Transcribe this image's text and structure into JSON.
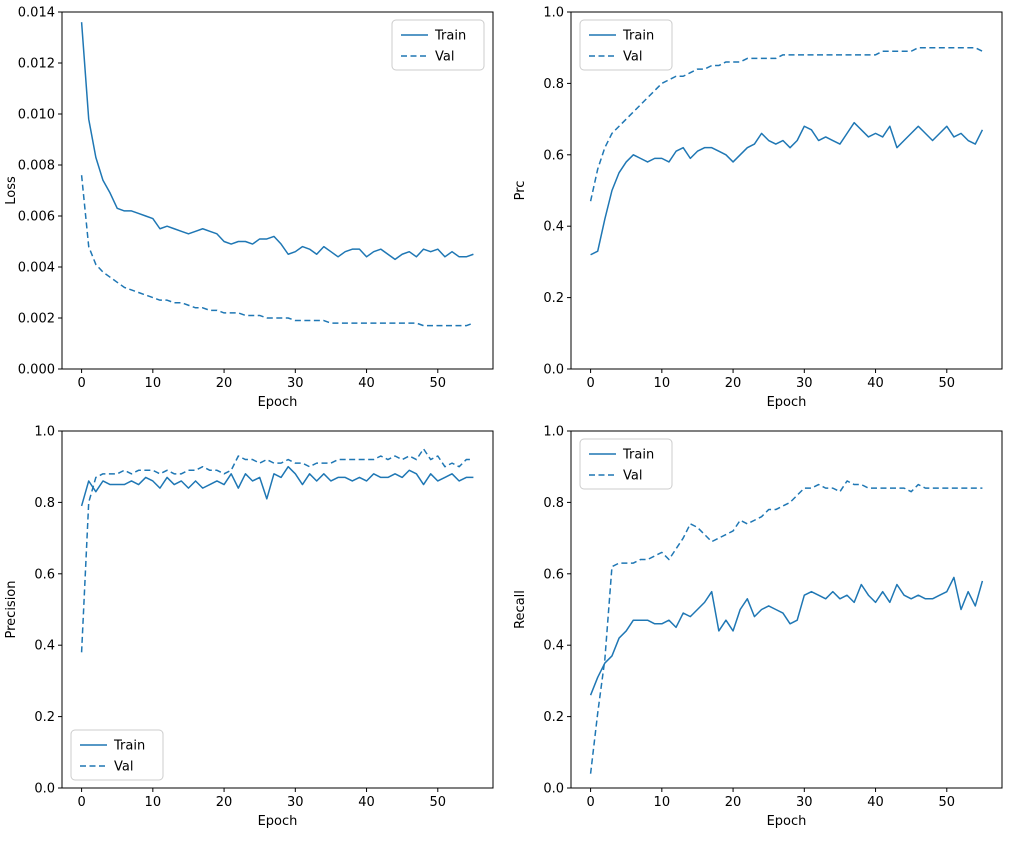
{
  "figure": {
    "background": "#ffffff",
    "accent_color": "#1f77b4",
    "text_color": "#000000",
    "frame_color": "#000000",
    "legend_border_color": "#cccccc"
  },
  "chart_data": [
    {
      "id": "loss",
      "type": "line",
      "title": "",
      "xlabel": "Epoch",
      "ylabel": "Loss",
      "x_range": [
        0,
        55
      ],
      "xlim": [
        -2.75,
        57.75
      ],
      "ylim": [
        0,
        0.014
      ],
      "xticks": [
        0,
        10,
        20,
        30,
        40,
        50
      ],
      "yticks": [
        0,
        0.002,
        0.004,
        0.006,
        0.008,
        0.01,
        0.012,
        0.014
      ],
      "ytick_decimals": 3,
      "legend_position": "upper-right",
      "legend_labels": [
        "Train",
        "Val"
      ],
      "series": [
        {
          "name": "Train",
          "style": "solid",
          "values": [
            0.0136,
            0.0098,
            0.0083,
            0.0074,
            0.0069,
            0.0063,
            0.0062,
            0.0062,
            0.0061,
            0.006,
            0.0059,
            0.0055,
            0.0056,
            0.0055,
            0.0054,
            0.0053,
            0.0054,
            0.0055,
            0.0054,
            0.0053,
            0.005,
            0.0049,
            0.005,
            0.005,
            0.0049,
            0.0051,
            0.0051,
            0.0052,
            0.0049,
            0.0045,
            0.0046,
            0.0048,
            0.0047,
            0.0045,
            0.0048,
            0.0046,
            0.0044,
            0.0046,
            0.0047,
            0.0047,
            0.0044,
            0.0046,
            0.0047,
            0.0045,
            0.0043,
            0.0045,
            0.0046,
            0.0044,
            0.0047,
            0.0046,
            0.0047,
            0.0044,
            0.0046,
            0.0044,
            0.0044,
            0.0045
          ]
        },
        {
          "name": "Val",
          "style": "dashed",
          "values": [
            0.0076,
            0.0048,
            0.0041,
            0.0038,
            0.0036,
            0.0034,
            0.0032,
            0.0031,
            0.003,
            0.0029,
            0.0028,
            0.0027,
            0.0027,
            0.0026,
            0.0026,
            0.0025,
            0.0024,
            0.0024,
            0.0023,
            0.0023,
            0.0022,
            0.0022,
            0.0022,
            0.0021,
            0.0021,
            0.0021,
            0.002,
            0.002,
            0.002,
            0.002,
            0.0019,
            0.0019,
            0.0019,
            0.0019,
            0.0019,
            0.0018,
            0.0018,
            0.0018,
            0.0018,
            0.0018,
            0.0018,
            0.0018,
            0.0018,
            0.0018,
            0.0018,
            0.0018,
            0.0018,
            0.0018,
            0.0017,
            0.0017,
            0.0017,
            0.0017,
            0.0017,
            0.0017,
            0.0017,
            0.0018
          ]
        }
      ]
    },
    {
      "id": "prc",
      "type": "line",
      "title": "",
      "xlabel": "Epoch",
      "ylabel": "Prc",
      "x_range": [
        0,
        55
      ],
      "xlim": [
        -2.75,
        57.75
      ],
      "ylim": [
        0,
        1
      ],
      "xticks": [
        0,
        10,
        20,
        30,
        40,
        50
      ],
      "yticks": [
        0,
        0.2,
        0.4,
        0.6,
        0.8,
        1
      ],
      "ytick_decimals": 1,
      "legend_position": "upper-left",
      "legend_labels": [
        "Train",
        "Val"
      ],
      "series": [
        {
          "name": "Train",
          "style": "solid",
          "values": [
            0.32,
            0.33,
            0.42,
            0.5,
            0.55,
            0.58,
            0.6,
            0.59,
            0.58,
            0.59,
            0.59,
            0.58,
            0.61,
            0.62,
            0.59,
            0.61,
            0.62,
            0.62,
            0.61,
            0.6,
            0.58,
            0.6,
            0.62,
            0.63,
            0.66,
            0.64,
            0.63,
            0.64,
            0.62,
            0.64,
            0.68,
            0.67,
            0.64,
            0.65,
            0.64,
            0.63,
            0.66,
            0.69,
            0.67,
            0.65,
            0.66,
            0.65,
            0.68,
            0.62,
            0.64,
            0.66,
            0.68,
            0.66,
            0.64,
            0.66,
            0.68,
            0.65,
            0.66,
            0.64,
            0.63,
            0.67
          ]
        },
        {
          "name": "Val",
          "style": "dashed",
          "values": [
            0.47,
            0.56,
            0.62,
            0.66,
            0.68,
            0.7,
            0.72,
            0.74,
            0.76,
            0.78,
            0.8,
            0.81,
            0.82,
            0.82,
            0.83,
            0.84,
            0.84,
            0.85,
            0.85,
            0.86,
            0.86,
            0.86,
            0.87,
            0.87,
            0.87,
            0.87,
            0.87,
            0.88,
            0.88,
            0.88,
            0.88,
            0.88,
            0.88,
            0.88,
            0.88,
            0.88,
            0.88,
            0.88,
            0.88,
            0.88,
            0.88,
            0.89,
            0.89,
            0.89,
            0.89,
            0.89,
            0.9,
            0.9,
            0.9,
            0.9,
            0.9,
            0.9,
            0.9,
            0.9,
            0.9,
            0.89
          ]
        }
      ]
    },
    {
      "id": "precision",
      "type": "line",
      "title": "",
      "xlabel": "Epoch",
      "ylabel": "Precision",
      "x_range": [
        0,
        55
      ],
      "xlim": [
        -2.75,
        57.75
      ],
      "ylim": [
        0,
        1
      ],
      "xticks": [
        0,
        10,
        20,
        30,
        40,
        50
      ],
      "yticks": [
        0,
        0.2,
        0.4,
        0.6,
        0.8,
        1
      ],
      "ytick_decimals": 1,
      "legend_position": "lower-left",
      "legend_labels": [
        "Train",
        "Val"
      ],
      "series": [
        {
          "name": "Train",
          "style": "solid",
          "values": [
            0.79,
            0.86,
            0.83,
            0.86,
            0.85,
            0.85,
            0.85,
            0.86,
            0.85,
            0.87,
            0.86,
            0.84,
            0.87,
            0.85,
            0.86,
            0.84,
            0.86,
            0.84,
            0.85,
            0.86,
            0.85,
            0.88,
            0.84,
            0.88,
            0.86,
            0.87,
            0.81,
            0.88,
            0.87,
            0.9,
            0.88,
            0.85,
            0.88,
            0.86,
            0.88,
            0.86,
            0.87,
            0.87,
            0.86,
            0.87,
            0.86,
            0.88,
            0.87,
            0.87,
            0.88,
            0.87,
            0.89,
            0.88,
            0.85,
            0.88,
            0.86,
            0.87,
            0.88,
            0.86,
            0.87,
            0.87
          ]
        },
        {
          "name": "Val",
          "style": "dashed",
          "values": [
            0.38,
            0.8,
            0.87,
            0.88,
            0.88,
            0.88,
            0.89,
            0.88,
            0.89,
            0.89,
            0.89,
            0.88,
            0.89,
            0.88,
            0.88,
            0.89,
            0.89,
            0.9,
            0.89,
            0.89,
            0.88,
            0.89,
            0.93,
            0.92,
            0.92,
            0.91,
            0.92,
            0.91,
            0.91,
            0.92,
            0.91,
            0.91,
            0.9,
            0.91,
            0.91,
            0.91,
            0.92,
            0.92,
            0.92,
            0.92,
            0.92,
            0.92,
            0.93,
            0.92,
            0.93,
            0.92,
            0.93,
            0.92,
            0.95,
            0.92,
            0.93,
            0.9,
            0.91,
            0.9,
            0.92,
            0.92
          ]
        }
      ]
    },
    {
      "id": "recall",
      "type": "line",
      "title": "",
      "xlabel": "Epoch",
      "ylabel": "Recall",
      "x_range": [
        0,
        55
      ],
      "xlim": [
        -2.75,
        57.75
      ],
      "ylim": [
        0,
        1
      ],
      "xticks": [
        0,
        10,
        20,
        30,
        40,
        50
      ],
      "yticks": [
        0,
        0.2,
        0.4,
        0.6,
        0.8,
        1
      ],
      "ytick_decimals": 1,
      "legend_position": "upper-left",
      "legend_labels": [
        "Train",
        "Val"
      ],
      "series": [
        {
          "name": "Train",
          "style": "solid",
          "values": [
            0.26,
            0.31,
            0.35,
            0.37,
            0.42,
            0.44,
            0.47,
            0.47,
            0.47,
            0.46,
            0.46,
            0.47,
            0.45,
            0.49,
            0.48,
            0.5,
            0.52,
            0.55,
            0.44,
            0.47,
            0.44,
            0.5,
            0.53,
            0.48,
            0.5,
            0.51,
            0.5,
            0.49,
            0.46,
            0.47,
            0.54,
            0.55,
            0.54,
            0.53,
            0.55,
            0.53,
            0.54,
            0.52,
            0.57,
            0.54,
            0.52,
            0.55,
            0.52,
            0.57,
            0.54,
            0.53,
            0.54,
            0.53,
            0.53,
            0.54,
            0.55,
            0.59,
            0.5,
            0.55,
            0.51,
            0.58
          ]
        },
        {
          "name": "Val",
          "style": "dashed",
          "values": [
            0.04,
            0.21,
            0.36,
            0.62,
            0.63,
            0.63,
            0.63,
            0.64,
            0.64,
            0.65,
            0.66,
            0.64,
            0.67,
            0.7,
            0.74,
            0.73,
            0.71,
            0.69,
            0.7,
            0.71,
            0.72,
            0.75,
            0.74,
            0.75,
            0.76,
            0.78,
            0.78,
            0.79,
            0.8,
            0.82,
            0.84,
            0.84,
            0.85,
            0.84,
            0.84,
            0.83,
            0.86,
            0.85,
            0.85,
            0.84,
            0.84,
            0.84,
            0.84,
            0.84,
            0.84,
            0.83,
            0.85,
            0.84,
            0.84,
            0.84,
            0.84,
            0.84,
            0.84,
            0.84,
            0.84,
            0.84
          ]
        }
      ]
    }
  ]
}
